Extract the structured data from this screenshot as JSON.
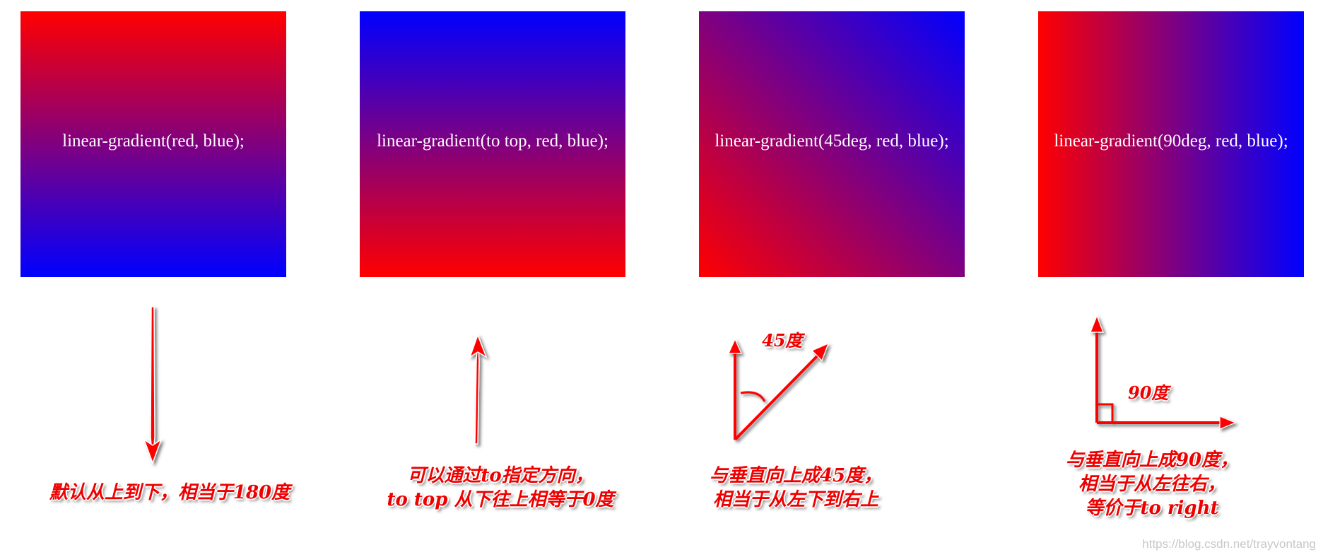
{
  "boxes": [
    {
      "label": "linear-gradient(red, blue);"
    },
    {
      "label": "linear-gradient(to top, red, blue);"
    },
    {
      "label": "linear-gradient(45deg, red, blue);"
    },
    {
      "label": "linear-gradient(90deg, red, blue);"
    }
  ],
  "captions": {
    "c1": [
      "默认从上到下，相当于180度"
    ],
    "c2": [
      "可以通过to指定方向，",
      "to top 从下往上相等于0度"
    ],
    "c3": [
      "与垂直向上成45度，",
      "相当于从左下到右上"
    ],
    "c4": [
      "与垂直向上成90度，",
      "相当于从左往右，",
      "等价于to right"
    ]
  },
  "angle_labels": {
    "a45": "45度",
    "a90": "90度"
  },
  "watermark": "https://blog.csdn.net/trayvontang",
  "colors": {
    "gradient_start": "#ff0000",
    "gradient_end": "#0000ff",
    "annotation": "#ee0000"
  },
  "icons": [
    "down-arrow-icon",
    "up-arrow-icon",
    "diagonal-arrow-icon",
    "right-angle-arrows-icon"
  ]
}
